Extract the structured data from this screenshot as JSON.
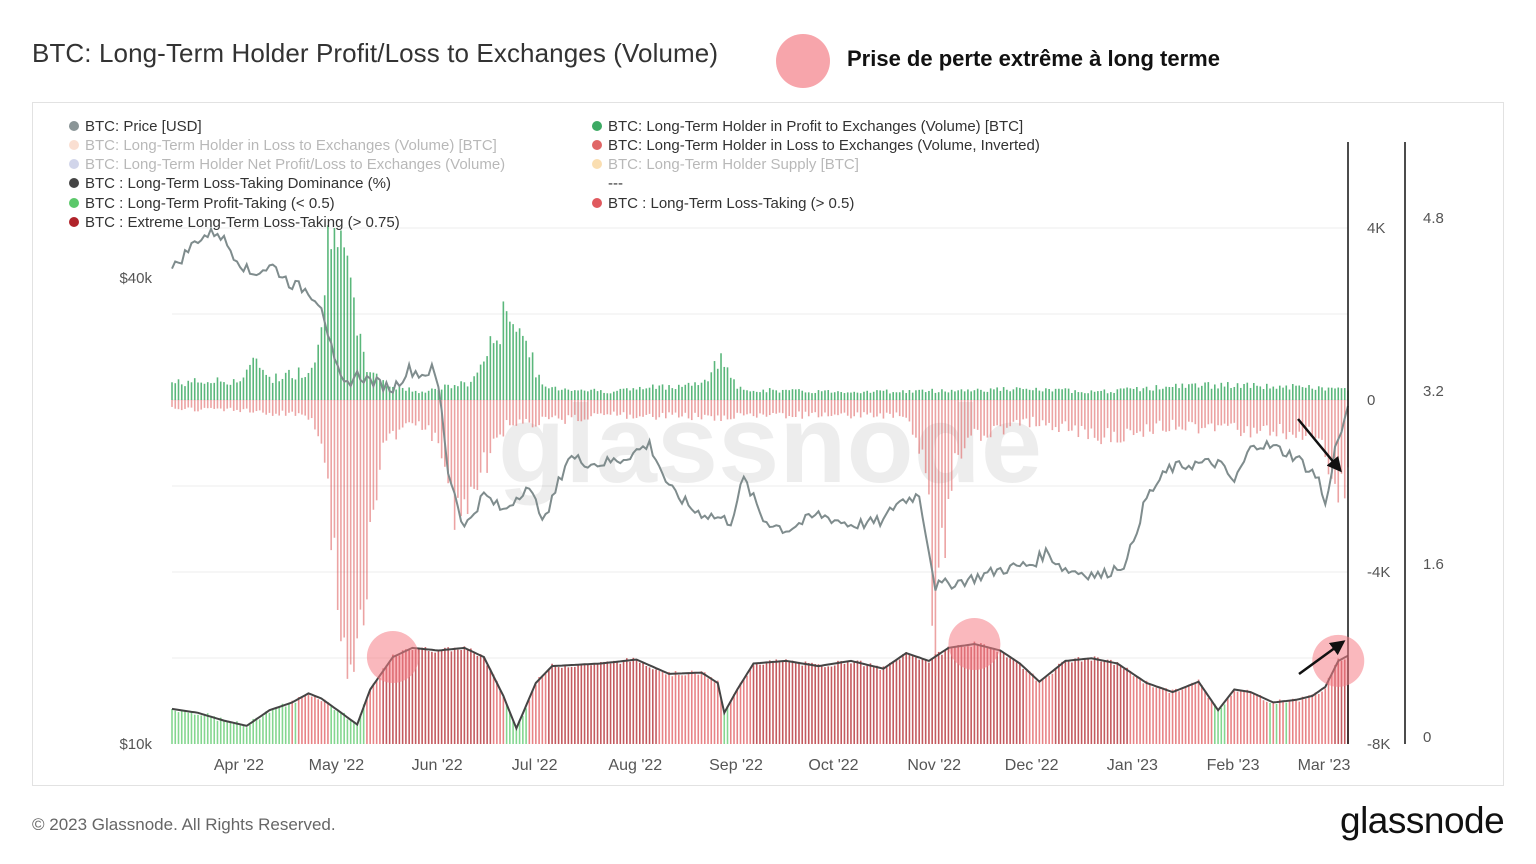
{
  "header": {
    "title": "BTC: Long-Term Holder Profit/Loss to Exchanges (Volume)",
    "annotation": "Prise de perte extrême à long terme",
    "annotation_color": "#f7a5ab"
  },
  "footer": {
    "copyright": "© 2023 Glassnode. All Rights Reserved.",
    "logo": "glassnode"
  },
  "watermark": "glassnode",
  "colors": {
    "price": "#7f8c8d",
    "profit": "#3daa64",
    "loss_inverted": "#e06666",
    "dominance": "#444444",
    "profit_taking": "#5bc86a",
    "loss_taking": "#e0595e",
    "extreme_loss": "#b0232a",
    "arrow": "#111111",
    "highlight": "#f57d86"
  },
  "chart_data": {
    "type": "line",
    "title": "BTC: Long-Term Holder Profit/Loss to Exchanges (Volume)",
    "legend": [
      {
        "name": "BTC: Price [USD]",
        "color": "#8a9597",
        "faded": false
      },
      {
        "name": "BTC: Long-Term Holder in Profit to Exchanges (Volume) [BTC]",
        "color": "#3daa64",
        "faded": false
      },
      {
        "name": "BTC: Long-Term Holder in Loss to Exchanges (Volume) [BTC]",
        "color": "#f2a47f",
        "faded": true
      },
      {
        "name": "BTC: Long-Term Holder in Loss to Exchanges (Volume, Inverted)",
        "color": "#e06666",
        "faded": false
      },
      {
        "name": "BTC: Long-Term Holder Net Profit/Loss to Exchanges (Volume)",
        "color": "#7a86c4",
        "faded": true
      },
      {
        "name": "BTC: Long-Term Holder Supply [BTC]",
        "color": "#f0a020",
        "faded": true
      },
      {
        "name": "BTC : Long-Term Loss-Taking Dominance (%)",
        "color": "#444444",
        "faded": false
      },
      {
        "name": "---",
        "color": "",
        "faded": false
      },
      {
        "name": "BTC : Long-Term Profit-Taking (< 0.5)",
        "color": "#5bc86a",
        "faded": false
      },
      {
        "name": "BTC : Long-Term Loss-Taking (> 0.5)",
        "color": "#e0595e",
        "faded": false
      },
      {
        "name": "BTC : Extreme Long-Term Loss-Taking (> 0.75)",
        "color": "#b0232a",
        "faded": false
      }
    ],
    "x_ticks": [
      "Apr '22",
      "May '22",
      "Jun '22",
      "Jul '22",
      "Aug '22",
      "Sep '22",
      "Oct '22",
      "Nov '22",
      "Dec '22",
      "Jan '23",
      "Feb '23",
      "Mar '23"
    ],
    "price_axis": {
      "ticks": [
        "$40k",
        "$10k"
      ],
      "scale": "log"
    },
    "volume_axis": {
      "ticks": [
        "4K",
        "0",
        "-4K",
        "-8K"
      ],
      "range": [
        -8000,
        6000
      ]
    },
    "dominance_axis": {
      "ticks": [
        "4.8",
        "3.2",
        "1.6",
        "0"
      ],
      "range": [
        0,
        6
      ]
    },
    "series": [
      {
        "name": "BTC: Price [USD]",
        "unit": "USD",
        "points": [
          [
            "2022-03-20",
            41000
          ],
          [
            "2022-03-28",
            45000
          ],
          [
            "2022-04-03",
            46000
          ],
          [
            "2022-04-08",
            43000
          ],
          [
            "2022-04-13",
            40500
          ],
          [
            "2022-04-20",
            41500
          ],
          [
            "2022-04-25",
            39500
          ],
          [
            "2022-05-01",
            38500
          ],
          [
            "2022-05-05",
            37000
          ],
          [
            "2022-05-09",
            31000
          ],
          [
            "2022-05-12",
            29000
          ],
          [
            "2022-05-16",
            30000
          ],
          [
            "2022-05-20",
            29500
          ],
          [
            "2022-05-27",
            28800
          ],
          [
            "2022-06-01",
            30500
          ],
          [
            "2022-06-05",
            30000
          ],
          [
            "2022-06-08",
            30500
          ],
          [
            "2022-06-10",
            29000
          ],
          [
            "2022-06-13",
            22500
          ],
          [
            "2022-06-18",
            19000
          ],
          [
            "2022-06-24",
            21000
          ],
          [
            "2022-06-30",
            20000
          ],
          [
            "2022-07-07",
            21500
          ],
          [
            "2022-07-13",
            19500
          ],
          [
            "2022-07-20",
            23500
          ],
          [
            "2022-07-28",
            23000
          ],
          [
            "2022-08-05",
            23300
          ],
          [
            "2022-08-14",
            24400
          ],
          [
            "2022-08-20",
            21400
          ],
          [
            "2022-08-28",
            20000
          ],
          [
            "2022-09-08",
            19400
          ],
          [
            "2022-09-12",
            22000
          ],
          [
            "2022-09-18",
            19500
          ],
          [
            "2022-09-25",
            18900
          ],
          [
            "2022-10-05",
            19800
          ],
          [
            "2022-10-15",
            19200
          ],
          [
            "2022-10-25",
            19400
          ],
          [
            "2022-10-29",
            20500
          ],
          [
            "2022-11-05",
            21000
          ],
          [
            "2022-11-08",
            17800
          ],
          [
            "2022-11-10",
            16000
          ],
          [
            "2022-11-20",
            16300
          ],
          [
            "2022-11-30",
            16800
          ],
          [
            "2022-12-10",
            17100
          ],
          [
            "2022-12-14",
            17700
          ],
          [
            "2022-12-20",
            16800
          ],
          [
            "2022-12-31",
            16500
          ],
          [
            "2023-01-08",
            17200
          ],
          [
            "2023-01-14",
            20800
          ],
          [
            "2023-01-21",
            22700
          ],
          [
            "2023-01-28",
            23000
          ],
          [
            "2023-02-05",
            23100
          ],
          [
            "2023-02-10",
            21800
          ],
          [
            "2023-02-16",
            24500
          ],
          [
            "2023-02-22",
            24200
          ],
          [
            "2023-03-01",
            23500
          ],
          [
            "2023-03-08",
            22000
          ],
          [
            "2023-03-10",
            20200
          ],
          [
            "2023-03-13",
            24000
          ],
          [
            "2023-03-17",
            26900
          ]
        ]
      },
      {
        "name": "BTC: Long-Term Holder in Profit to Exchanges (Volume) [BTC]",
        "unit": "BTC",
        "points": [
          [
            "2022-03-20",
            400
          ],
          [
            "2022-04-10",
            450
          ],
          [
            "2022-04-15",
            900
          ],
          [
            "2022-04-20",
            500
          ],
          [
            "2022-05-01",
            700
          ],
          [
            "2022-05-05",
            1500
          ],
          [
            "2022-05-07",
            3800
          ],
          [
            "2022-05-09",
            5100
          ],
          [
            "2022-05-11",
            4200
          ],
          [
            "2022-05-13",
            2800
          ],
          [
            "2022-05-16",
            1500
          ],
          [
            "2022-05-20",
            600
          ],
          [
            "2022-05-27",
            300
          ],
          [
            "2022-06-05",
            200
          ],
          [
            "2022-06-20",
            400
          ],
          [
            "2022-06-28",
            1500
          ],
          [
            "2022-07-02",
            2200
          ],
          [
            "2022-07-06",
            1500
          ],
          [
            "2022-07-12",
            300
          ],
          [
            "2022-08-01",
            200
          ],
          [
            "2022-09-01",
            400
          ],
          [
            "2022-09-03",
            1000
          ],
          [
            "2022-09-06",
            900
          ],
          [
            "2022-09-10",
            250
          ],
          [
            "2022-10-01",
            200
          ],
          [
            "2022-11-01",
            200
          ],
          [
            "2022-12-01",
            250
          ],
          [
            "2023-01-01",
            200
          ],
          [
            "2023-01-20",
            300
          ],
          [
            "2023-02-01",
            350
          ],
          [
            "2023-03-01",
            300
          ],
          [
            "2023-03-17",
            250
          ]
        ]
      },
      {
        "name": "BTC: Long-Term Holder in Loss to Exchanges (Volume, Inverted)",
        "unit": "BTC",
        "points": [
          [
            "2022-03-20",
            -200
          ],
          [
            "2022-04-15",
            -250
          ],
          [
            "2022-05-01",
            -400
          ],
          [
            "2022-05-06",
            -1200
          ],
          [
            "2022-05-09",
            -3800
          ],
          [
            "2022-05-11",
            -5500
          ],
          [
            "2022-05-13",
            -6000
          ],
          [
            "2022-05-15",
            -5300
          ],
          [
            "2022-05-18",
            -4500
          ],
          [
            "2022-05-20",
            -3000
          ],
          [
            "2022-05-24",
            -1200
          ],
          [
            "2022-06-01",
            -500
          ],
          [
            "2022-06-10",
            -900
          ],
          [
            "2022-06-14",
            -2400
          ],
          [
            "2022-06-18",
            -2600
          ],
          [
            "2022-06-22",
            -1800
          ],
          [
            "2022-07-01",
            -600
          ],
          [
            "2022-08-01",
            -350
          ],
          [
            "2022-09-01",
            -400
          ],
          [
            "2022-10-01",
            -350
          ],
          [
            "2022-11-01",
            -350
          ],
          [
            "2022-11-06",
            -1200
          ],
          [
            "2022-11-08",
            -2300
          ],
          [
            "2022-11-09",
            -4700
          ],
          [
            "2022-11-10",
            -5500
          ],
          [
            "2022-11-11",
            -4800
          ],
          [
            "2022-11-13",
            -3000
          ],
          [
            "2022-11-16",
            -1600
          ],
          [
            "2022-11-22",
            -800
          ],
          [
            "2022-12-10",
            -500
          ],
          [
            "2023-01-05",
            -900
          ],
          [
            "2023-01-20",
            -600
          ],
          [
            "2023-02-15",
            -700
          ],
          [
            "2023-03-08",
            -800
          ],
          [
            "2023-03-10",
            -1500
          ],
          [
            "2023-03-13",
            -1900
          ],
          [
            "2023-03-17",
            -2000
          ]
        ]
      },
      {
        "name": "BTC : Long-Term Loss-Taking Dominance (%)",
        "unit": "%",
        "points": [
          [
            "2022-03-20",
            0.45
          ],
          [
            "2022-03-28",
            0.42
          ],
          [
            "2022-04-05",
            0.36
          ],
          [
            "2022-04-12",
            0.32
          ],
          [
            "2022-04-19",
            0.44
          ],
          [
            "2022-04-26",
            0.5
          ],
          [
            "2022-05-01",
            0.57
          ],
          [
            "2022-05-05",
            0.53
          ],
          [
            "2022-05-10",
            0.44
          ],
          [
            "2022-05-16",
            0.33
          ],
          [
            "2022-05-20",
            0.6
          ],
          [
            "2022-05-27",
            0.85
          ],
          [
            "2022-06-02",
            0.92
          ],
          [
            "2022-06-10",
            0.9
          ],
          [
            "2022-06-18",
            0.92
          ],
          [
            "2022-06-24",
            0.85
          ],
          [
            "2022-06-30",
            0.55
          ],
          [
            "2022-07-04",
            0.3
          ],
          [
            "2022-07-10",
            0.65
          ],
          [
            "2022-07-15",
            0.78
          ],
          [
            "2022-07-30",
            0.8
          ],
          [
            "2022-08-10",
            0.83
          ],
          [
            "2022-08-20",
            0.72
          ],
          [
            "2022-08-30",
            0.73
          ],
          [
            "2022-09-04",
            0.65
          ],
          [
            "2022-09-06",
            0.42
          ],
          [
            "2022-09-10",
            0.6
          ],
          [
            "2022-09-15",
            0.8
          ],
          [
            "2022-09-25",
            0.82
          ],
          [
            "2022-10-05",
            0.78
          ],
          [
            "2022-10-15",
            0.82
          ],
          [
            "2022-10-25",
            0.76
          ],
          [
            "2022-11-01",
            0.88
          ],
          [
            "2022-11-08",
            0.82
          ],
          [
            "2022-11-14",
            0.92
          ],
          [
            "2022-11-22",
            0.95
          ],
          [
            "2022-11-30",
            0.9
          ],
          [
            "2022-12-06",
            0.8
          ],
          [
            "2022-12-12",
            0.66
          ],
          [
            "2022-12-20",
            0.82
          ],
          [
            "2022-12-28",
            0.84
          ],
          [
            "2023-01-05",
            0.8
          ],
          [
            "2023-01-14",
            0.65
          ],
          [
            "2023-01-22",
            0.58
          ],
          [
            "2023-01-30",
            0.66
          ],
          [
            "2023-02-05",
            0.44
          ],
          [
            "2023-02-10",
            0.6
          ],
          [
            "2023-02-15",
            0.58
          ],
          [
            "2023-02-22",
            0.5
          ],
          [
            "2023-03-01",
            0.52
          ],
          [
            "2023-03-06",
            0.55
          ],
          [
            "2023-03-10",
            0.62
          ],
          [
            "2023-03-14",
            0.82
          ],
          [
            "2023-03-17",
            0.86
          ]
        ]
      }
    ],
    "thresholds": {
      "profit_taking": 0.5,
      "loss_taking": 0.5,
      "extreme_loss_taking": 0.75
    },
    "x_range": [
      "2022-03-20",
      "2023-03-17"
    ],
    "price_range": [
      10000,
      60000
    ],
    "annotations": [
      {
        "type": "highlight",
        "date": "2022-05-27",
        "label": "Extreme loss-taking"
      },
      {
        "type": "highlight",
        "date": "2022-11-22",
        "label": "Extreme loss-taking"
      },
      {
        "type": "highlight",
        "date": "2023-03-14",
        "label": "Extreme loss-taking"
      },
      {
        "type": "arrow",
        "date": "2023-03-13",
        "direction": "down"
      },
      {
        "type": "arrow",
        "date": "2023-03-13",
        "direction": "up"
      }
    ],
    "grid": true
  }
}
